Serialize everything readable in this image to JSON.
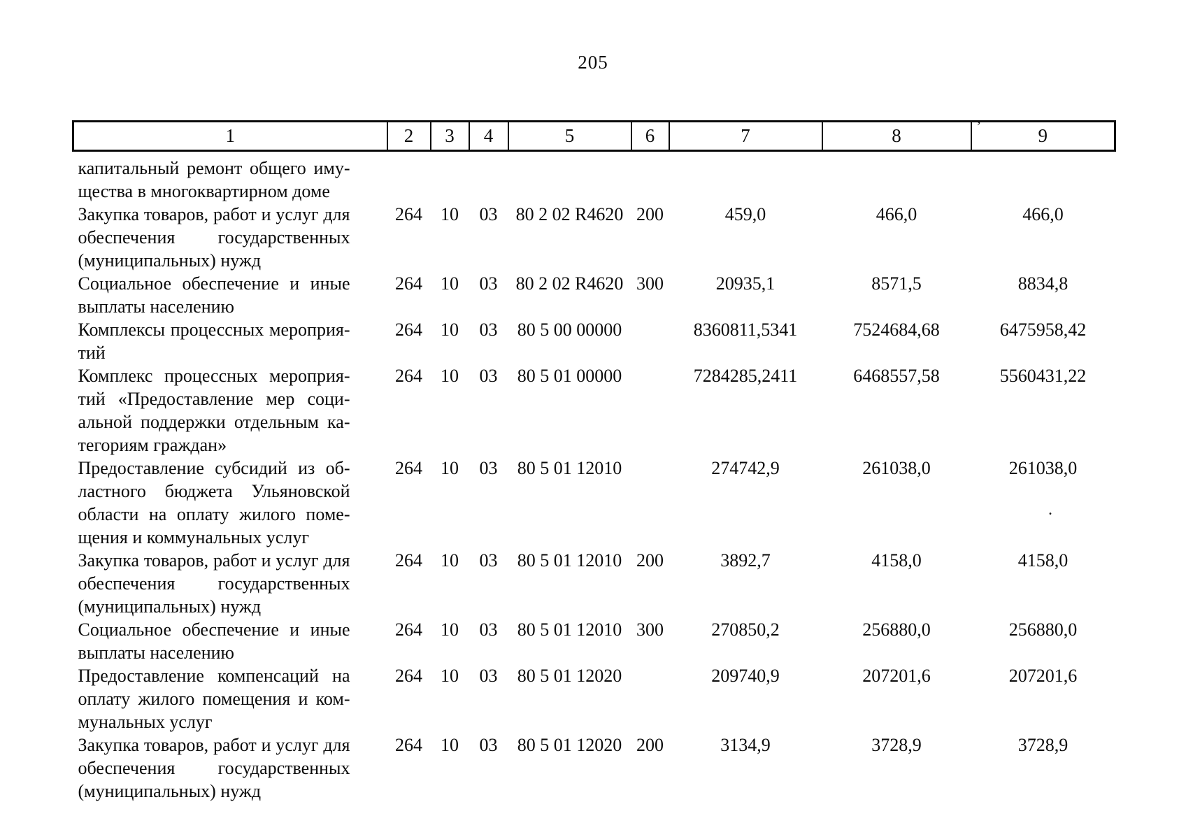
{
  "page": {
    "number": "205"
  },
  "table": {
    "header": [
      "1",
      "2",
      "3",
      "4",
      "5",
      "6",
      "7",
      "8",
      "9"
    ],
    "rows": [
      {
        "desc": [
          "капитальный ремонт общего иму-",
          "щества в многоквартирном доме"
        ],
        "cells": [
          "",
          "",
          "",
          "",
          "",
          "",
          "",
          ""
        ]
      },
      {
        "desc": [
          "Закупка товаров, работ и услуг для",
          "обеспечения государственных",
          "(муниципальных) нужд"
        ],
        "cells": [
          "264",
          "10",
          "03",
          "80 2 02 R4620",
          "200",
          "459,0",
          "466,0",
          "466,0"
        ]
      },
      {
        "desc": [
          "Социальное обеспечение и иные",
          "выплаты населению"
        ],
        "cells": [
          "264",
          "10",
          "03",
          "80 2 02 R4620",
          "300",
          "20935,1",
          "8571,5",
          "8834,8"
        ]
      },
      {
        "desc": [
          "Комплексы процессных мероприя-",
          "тий"
        ],
        "cells": [
          "264",
          "10",
          "03",
          "80 5 00 00000",
          "",
          "8360811,5341",
          "7524684,68",
          "6475958,42"
        ]
      },
      {
        "desc": [
          "Комплекс процессных мероприя-",
          "тий «Предоставление мер соци-",
          "альной поддержки отдельным ка-",
          "тегориям граждан»"
        ],
        "cells": [
          "264",
          "10",
          "03",
          "80 5 01 00000",
          "",
          "7284285,2411",
          "6468557,58",
          "5560431,22"
        ]
      },
      {
        "desc": [
          "Предоставление субсидий из об-",
          "ластного бюджета Ульяновской",
          "области на оплату жилого поме-",
          "щения и коммунальных услуг"
        ],
        "cells": [
          "264",
          "10",
          "03",
          "80 5 01 12010",
          "",
          "274742,9",
          "261038,0",
          "261038,0"
        ]
      },
      {
        "desc": [
          "Закупка товаров, работ и услуг для",
          "обеспечения государственных",
          "(муниципальных) нужд"
        ],
        "cells": [
          "264",
          "10",
          "03",
          "80 5 01 12010",
          "200",
          "3892,7",
          "4158,0",
          "4158,0"
        ]
      },
      {
        "desc": [
          "Социальное обеспечение и иные",
          "выплаты населению"
        ],
        "cells": [
          "264",
          "10",
          "03",
          "80 5 01 12010",
          "300",
          "270850,2",
          "256880,0",
          "256880,0"
        ]
      },
      {
        "desc": [
          "Предоставление компенсаций на",
          "оплату жилого помещения и ком-",
          "мунальных услуг"
        ],
        "cells": [
          "264",
          "10",
          "03",
          "80 5 01 12020",
          "",
          "209740,9",
          "207201,6",
          "207201,6"
        ]
      },
      {
        "desc": [
          "Закупка товаров, работ и услуг для",
          "обеспечения государственных",
          "(муниципальных) нужд"
        ],
        "cells": [
          "264",
          "10",
          "03",
          "80 5 01 12020",
          "200",
          "3134,9",
          "3728,9",
          "3728,9"
        ]
      }
    ]
  },
  "artifacts": {
    "apostrophe": "’",
    "dot": "."
  }
}
